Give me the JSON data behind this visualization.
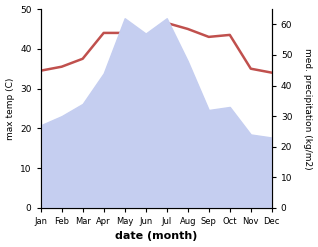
{
  "months": [
    "Jan",
    "Feb",
    "Mar",
    "Apr",
    "May",
    "Jun",
    "Jul",
    "Aug",
    "Sep",
    "Oct",
    "Nov",
    "Dec"
  ],
  "month_x": [
    1,
    2,
    3,
    4,
    5,
    6,
    7,
    8,
    9,
    10,
    11,
    12
  ],
  "temperature": [
    34.5,
    35.5,
    37.5,
    44.0,
    44.0,
    43.0,
    46.5,
    45.0,
    43.0,
    43.5,
    35.0,
    34.0
  ],
  "rainfall": [
    27,
    30,
    34,
    44,
    62,
    57,
    62,
    48,
    32,
    33,
    24,
    23
  ],
  "temp_color": "#c0504d",
  "rain_fill_color": "#c5cef0",
  "xlabel": "date (month)",
  "ylabel_left": "max temp (C)",
  "ylabel_right": "med. precipitation (kg/m2)",
  "ylim_left": [
    0,
    50
  ],
  "ylim_right": [
    0,
    65
  ],
  "yticks_left": [
    0,
    10,
    20,
    30,
    40,
    50
  ],
  "yticks_right": [
    0,
    10,
    20,
    30,
    40,
    50,
    60
  ],
  "background_color": "#ffffff"
}
